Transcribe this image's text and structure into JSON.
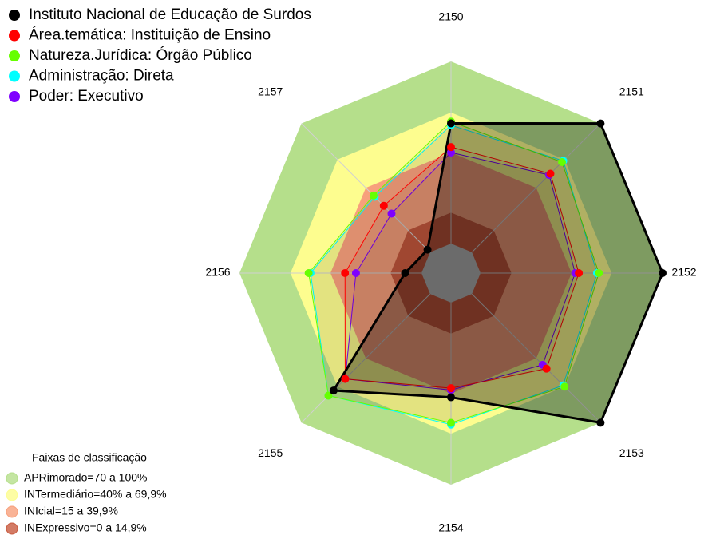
{
  "chart_data": {
    "type": "radar",
    "categories": [
      "2150",
      "2151",
      "2152",
      "2153",
      "2154",
      "2155",
      "2156",
      "2157"
    ],
    "rlim": [
      0,
      100
    ],
    "bands_title": "Faixas de classificação",
    "bands": [
      {
        "name": "APRimorado=70 a 100%",
        "color": "#b5df8b",
        "outer": 100
      },
      {
        "name": "INTermediário=40% a 69,9%",
        "color": "#fdfd8f",
        "outer": 72
      },
      {
        "name": "INIcial=15 a 39,9%",
        "color": "#f7a07c",
        "outer": 50
      },
      {
        "name": "INExpressivo=0 a 14,9%",
        "color": "#c85a3e",
        "outer": 17
      }
    ],
    "series": [
      {
        "name": "Instituto Nacional de Educação de Surdos",
        "color": "#000000",
        "values": [
          66,
          100,
          100,
          100,
          52,
          75,
          9,
          2
        ]
      },
      {
        "name": "Área.temática: Instituição de Ensino",
        "color": "#ff0000",
        "values": [
          53,
          61,
          54,
          58,
          47,
          66,
          42,
          36
        ]
      },
      {
        "name": "Natureza.Jurídica: Órgão Público",
        "color": "#66ff00",
        "values": [
          67,
          70,
          65,
          72,
          66,
          79,
          62,
          44
        ]
      },
      {
        "name": "Administração: Direta",
        "color": "#00ffff",
        "values": [
          65,
          71,
          64,
          71,
          67,
          79,
          61,
          43
        ]
      },
      {
        "name": "Poder: Executivo",
        "color": "#7f00ff",
        "values": [
          50,
          60,
          52,
          55,
          48,
          66,
          36,
          30
        ]
      }
    ]
  }
}
